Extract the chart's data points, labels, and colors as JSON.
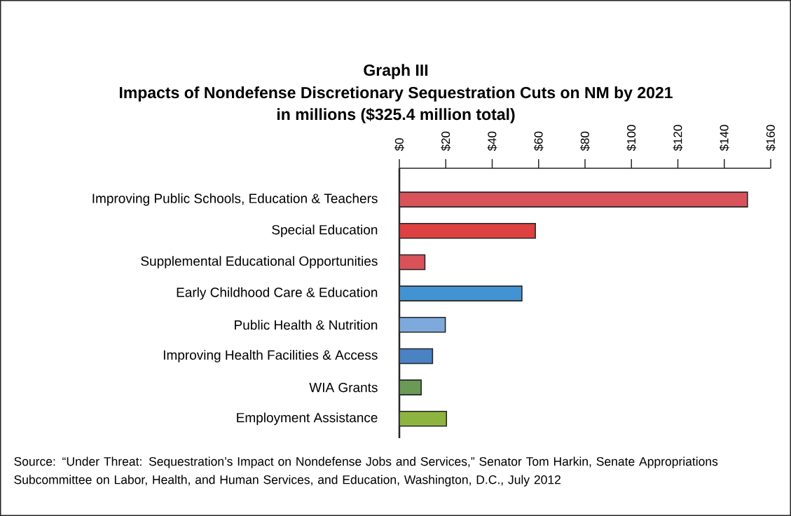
{
  "chart_data": {
    "type": "bar",
    "orientation": "horizontal",
    "title": "Graph III",
    "subtitle": "Impacts of Nondefense Discretionary Sequestration Cuts on NM by 2021",
    "xlabel": "in millions ($325.4 million total)",
    "categories": [
      "Improving Public Schools, Education & Teachers",
      "Special Education",
      "Supplemental Educational Opportunities",
      "Early Childhood Care & Education",
      "Public Health & Nutrition",
      "Improving Health Facilities & Access",
      "WIA Grants",
      "Employment Assistance"
    ],
    "values": [
      150,
      58.6,
      11,
      52.8,
      19.8,
      14.3,
      9.4,
      20.3
    ],
    "colors": [
      "#d9525a",
      "#dd4141",
      "#d9525a",
      "#4393d3",
      "#7ea9dc",
      "#4a82c4",
      "#6a9a55",
      "#8db43e"
    ],
    "xlim": [
      0,
      160
    ],
    "xticks": [
      {
        "value": 0,
        "label": "$0"
      },
      {
        "value": 20,
        "label": "$20"
      },
      {
        "value": 40,
        "label": "$40"
      },
      {
        "value": 60,
        "label": "$60"
      },
      {
        "value": 80,
        "label": "$80"
      },
      {
        "value": 100,
        "label": "$100"
      },
      {
        "value": 120,
        "label": "$120"
      },
      {
        "value": 140,
        "label": "$140"
      },
      {
        "value": 160,
        "label": "$160"
      }
    ],
    "annotations": [
      "Source: “Under Threat: Sequestration’s Impact on Nondefense Jobs and Services,” Senator Tom Harkin, Senate Appropriations Subcommittee on Labor, Health, and Human Services, and Education, Washington, D.C., July 2012"
    ]
  }
}
